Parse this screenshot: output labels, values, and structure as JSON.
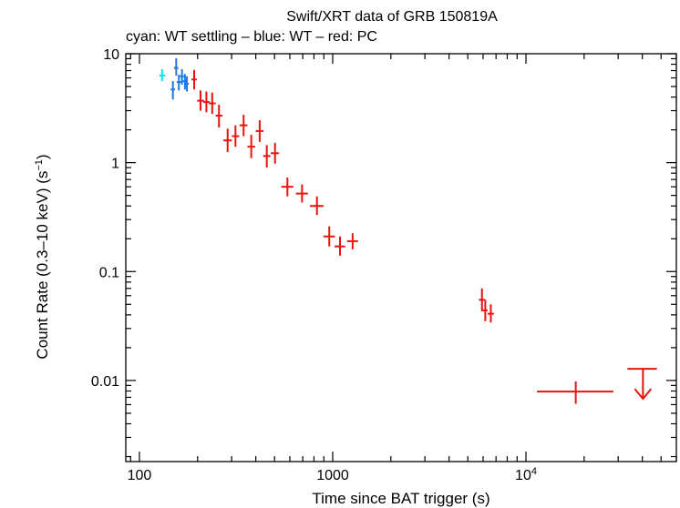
{
  "chart_data": {
    "type": "scatter",
    "title": "Swift/XRT data of GRB 150819A",
    "subtitle": "cyan: WT settling – blue: WT – red: PC",
    "xlabel": "Time since BAT trigger (s)",
    "ylabel_main": "Count Rate (0.3–10 keV) (s",
    "ylabel_sup": "−1",
    "ylabel_end": ")",
    "xscale": "log",
    "yscale": "log",
    "xlim": [
      85,
      60000
    ],
    "ylim": [
      0.0018,
      10
    ],
    "x_ticks": [
      {
        "value": 100,
        "label": "100"
      },
      {
        "value": 1000,
        "label": "1000"
      },
      {
        "value": 10000,
        "label": "10",
        "sup": "4"
      }
    ],
    "y_ticks": [
      {
        "value": 10,
        "label": "10"
      },
      {
        "value": 1,
        "label": "1"
      },
      {
        "value": 0.1,
        "label": "0.1"
      },
      {
        "value": 0.01,
        "label": "0.01"
      }
    ],
    "series": [
      {
        "name": "WT settling",
        "color": "#00e5ee",
        "points": [
          {
            "x": 131,
            "xlo": 127,
            "xhi": 136,
            "y": 6.3,
            "ylo": 5.6,
            "yhi": 7.2
          }
        ]
      },
      {
        "name": "WT",
        "color": "#1e78e6",
        "points": [
          {
            "x": 149,
            "xlo": 145,
            "xhi": 153,
            "y": 4.7,
            "ylo": 3.8,
            "yhi": 5.6
          },
          {
            "x": 155,
            "xlo": 151,
            "xhi": 159,
            "y": 7.4,
            "ylo": 6.3,
            "yhi": 9.1
          },
          {
            "x": 160,
            "xlo": 156,
            "xhi": 165,
            "y": 5.5,
            "ylo": 4.6,
            "yhi": 6.4
          },
          {
            "x": 166,
            "xlo": 162,
            "xhi": 170,
            "y": 6.2,
            "ylo": 5.2,
            "yhi": 7.2
          },
          {
            "x": 172,
            "xlo": 168,
            "xhi": 176,
            "y": 5.6,
            "ylo": 4.7,
            "yhi": 6.5
          },
          {
            "x": 176,
            "xlo": 173,
            "xhi": 180,
            "y": 5.3,
            "ylo": 4.5,
            "yhi": 6.2
          }
        ]
      },
      {
        "name": "PC",
        "color": "#e8140c",
        "points": [
          {
            "x": 192,
            "xlo": 186,
            "xhi": 198,
            "y": 5.8,
            "ylo": 4.7,
            "yhi": 7.1
          },
          {
            "x": 207,
            "xlo": 199,
            "xhi": 216,
            "y": 3.7,
            "ylo": 3.0,
            "yhi": 4.6
          },
          {
            "x": 222,
            "xlo": 214,
            "xhi": 231,
            "y": 3.6,
            "ylo": 2.9,
            "yhi": 4.5
          },
          {
            "x": 238,
            "xlo": 229,
            "xhi": 248,
            "y": 3.5,
            "ylo": 2.8,
            "yhi": 4.4
          },
          {
            "x": 258,
            "xlo": 248,
            "xhi": 269,
            "y": 2.7,
            "ylo": 2.1,
            "yhi": 3.4
          },
          {
            "x": 286,
            "xlo": 272,
            "xhi": 301,
            "y": 1.6,
            "ylo": 1.25,
            "yhi": 2.05
          },
          {
            "x": 314,
            "xlo": 301,
            "xhi": 328,
            "y": 1.75,
            "ylo": 1.4,
            "yhi": 2.2
          },
          {
            "x": 346,
            "xlo": 330,
            "xhi": 362,
            "y": 2.2,
            "ylo": 1.75,
            "yhi": 2.75
          },
          {
            "x": 379,
            "xlo": 362,
            "xhi": 397,
            "y": 1.4,
            "ylo": 1.1,
            "yhi": 1.8
          },
          {
            "x": 419,
            "xlo": 400,
            "xhi": 438,
            "y": 1.95,
            "ylo": 1.55,
            "yhi": 2.45
          },
          {
            "x": 456,
            "xlo": 437,
            "xhi": 476,
            "y": 1.15,
            "ylo": 0.9,
            "yhi": 1.45
          },
          {
            "x": 503,
            "xlo": 478,
            "xhi": 528,
            "y": 1.22,
            "ylo": 0.98,
            "yhi": 1.52
          },
          {
            "x": 583,
            "xlo": 542,
            "xhi": 625,
            "y": 0.6,
            "ylo": 0.49,
            "yhi": 0.73
          },
          {
            "x": 694,
            "xlo": 645,
            "xhi": 744,
            "y": 0.52,
            "ylo": 0.43,
            "yhi": 0.63
          },
          {
            "x": 829,
            "xlo": 763,
            "xhi": 896,
            "y": 0.4,
            "ylo": 0.33,
            "yhi": 0.49
          },
          {
            "x": 960,
            "xlo": 895,
            "xhi": 1027,
            "y": 0.21,
            "ylo": 0.17,
            "yhi": 0.26
          },
          {
            "x": 1091,
            "xlo": 1022,
            "xhi": 1161,
            "y": 0.17,
            "ylo": 0.14,
            "yhi": 0.21
          },
          {
            "x": 1268,
            "xlo": 1187,
            "xhi": 1352,
            "y": 0.19,
            "ylo": 0.16,
            "yhi": 0.225
          },
          {
            "x": 5920,
            "xlo": 5710,
            "xhi": 6130,
            "y": 0.055,
            "ylo": 0.043,
            "yhi": 0.07
          },
          {
            "x": 6160,
            "xlo": 5990,
            "xhi": 6330,
            "y": 0.044,
            "ylo": 0.035,
            "yhi": 0.055
          },
          {
            "x": 6580,
            "xlo": 6330,
            "xhi": 6830,
            "y": 0.041,
            "ylo": 0.034,
            "yhi": 0.05
          },
          {
            "x": 18100,
            "xlo": 11400,
            "xhi": 28300,
            "y": 0.0079,
            "ylo": 0.0061,
            "yhi": 0.0098
          }
        ]
      }
    ],
    "upper_limits": [
      {
        "series": "PC",
        "color": "#e8140c",
        "x": 40300,
        "xlo": 33500,
        "xhi": 47600,
        "y": 0.0128
      }
    ]
  }
}
